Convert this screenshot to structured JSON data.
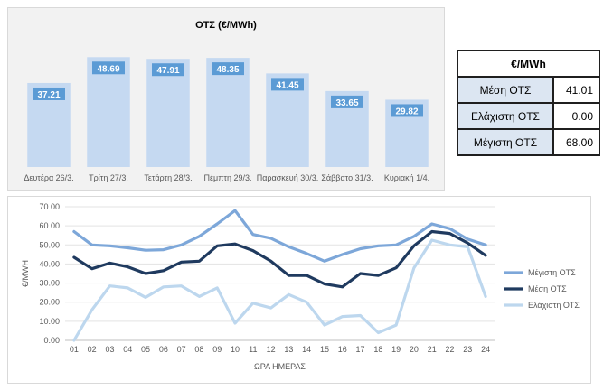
{
  "chart_data": [
    {
      "type": "bar",
      "title": "ΟΤΣ (€/MWh)",
      "categories": [
        "Δευτέρα 26/3.",
        "Τρίτη 27/3.",
        "Τετάρτη 28/3.",
        "Πέμπτη 29/3.",
        "Παρασκευή 30/3.",
        "Σάββατο 31/3.",
        "Κυριακή 1/4."
      ],
      "values": [
        37.21,
        48.69,
        47.91,
        48.35,
        41.45,
        33.65,
        29.82
      ],
      "value_labels": [
        "37.21",
        "48.69",
        "47.91",
        "48.35",
        "41.45",
        "33.65",
        "29.82"
      ],
      "ylim": [
        0,
        60
      ],
      "bar_color": "#c5d9f1"
    },
    {
      "type": "line",
      "xlabel": "ΩΡΑ ΗΜΕΡΑΣ",
      "ylabel": "€/MWH",
      "x": [
        "01",
        "02",
        "03",
        "04",
        "05",
        "06",
        "07",
        "08",
        "09",
        "10",
        "11",
        "12",
        "13",
        "14",
        "15",
        "16",
        "17",
        "18",
        "19",
        "20",
        "21",
        "22",
        "23",
        "24"
      ],
      "ylim": [
        0,
        70
      ],
      "yticks": [
        "0.00",
        "10.00",
        "20.00",
        "30.00",
        "40.00",
        "50.00",
        "60.00",
        "70.00"
      ],
      "grid": true,
      "legend": "right",
      "series": [
        {
          "name": "Μέγιστη ΟΤΣ",
          "color": "#7da7d9",
          "values": [
            57,
            50,
            49.5,
            48.5,
            47.2,
            47.5,
            50,
            54.5,
            61,
            68,
            55.5,
            53.5,
            49,
            45.5,
            41.5,
            45,
            48,
            49.5,
            50,
            54.5,
            61,
            58.5,
            53,
            50
          ]
        },
        {
          "name": "Μέση ΟΤΣ",
          "color": "#1f3a5f",
          "values": [
            43.5,
            37.5,
            40.5,
            38.5,
            35,
            36.5,
            41,
            41.5,
            49.5,
            50.5,
            47,
            41.5,
            34,
            34,
            29.5,
            28,
            35,
            34,
            38,
            49.5,
            57,
            56,
            51,
            44.5
          ]
        },
        {
          "name": "Ελάχιστη ΟΤΣ",
          "color": "#bdd7ee",
          "values": [
            0,
            16,
            28.5,
            27.5,
            22.5,
            28,
            28.5,
            23,
            27.5,
            9,
            19.5,
            17,
            24,
            20,
            8,
            12.5,
            13,
            4,
            8,
            38,
            52.5,
            50,
            49,
            23
          ]
        }
      ]
    }
  ],
  "stats_table": {
    "header": "€/MWh",
    "rows": [
      {
        "label": "Μέση ΟΤΣ",
        "value": "41.01"
      },
      {
        "label": "Ελάχιστη ΟΤΣ",
        "value": "0.00"
      },
      {
        "label": "Μέγιστη ΟΤΣ",
        "value": "68.00"
      }
    ]
  }
}
